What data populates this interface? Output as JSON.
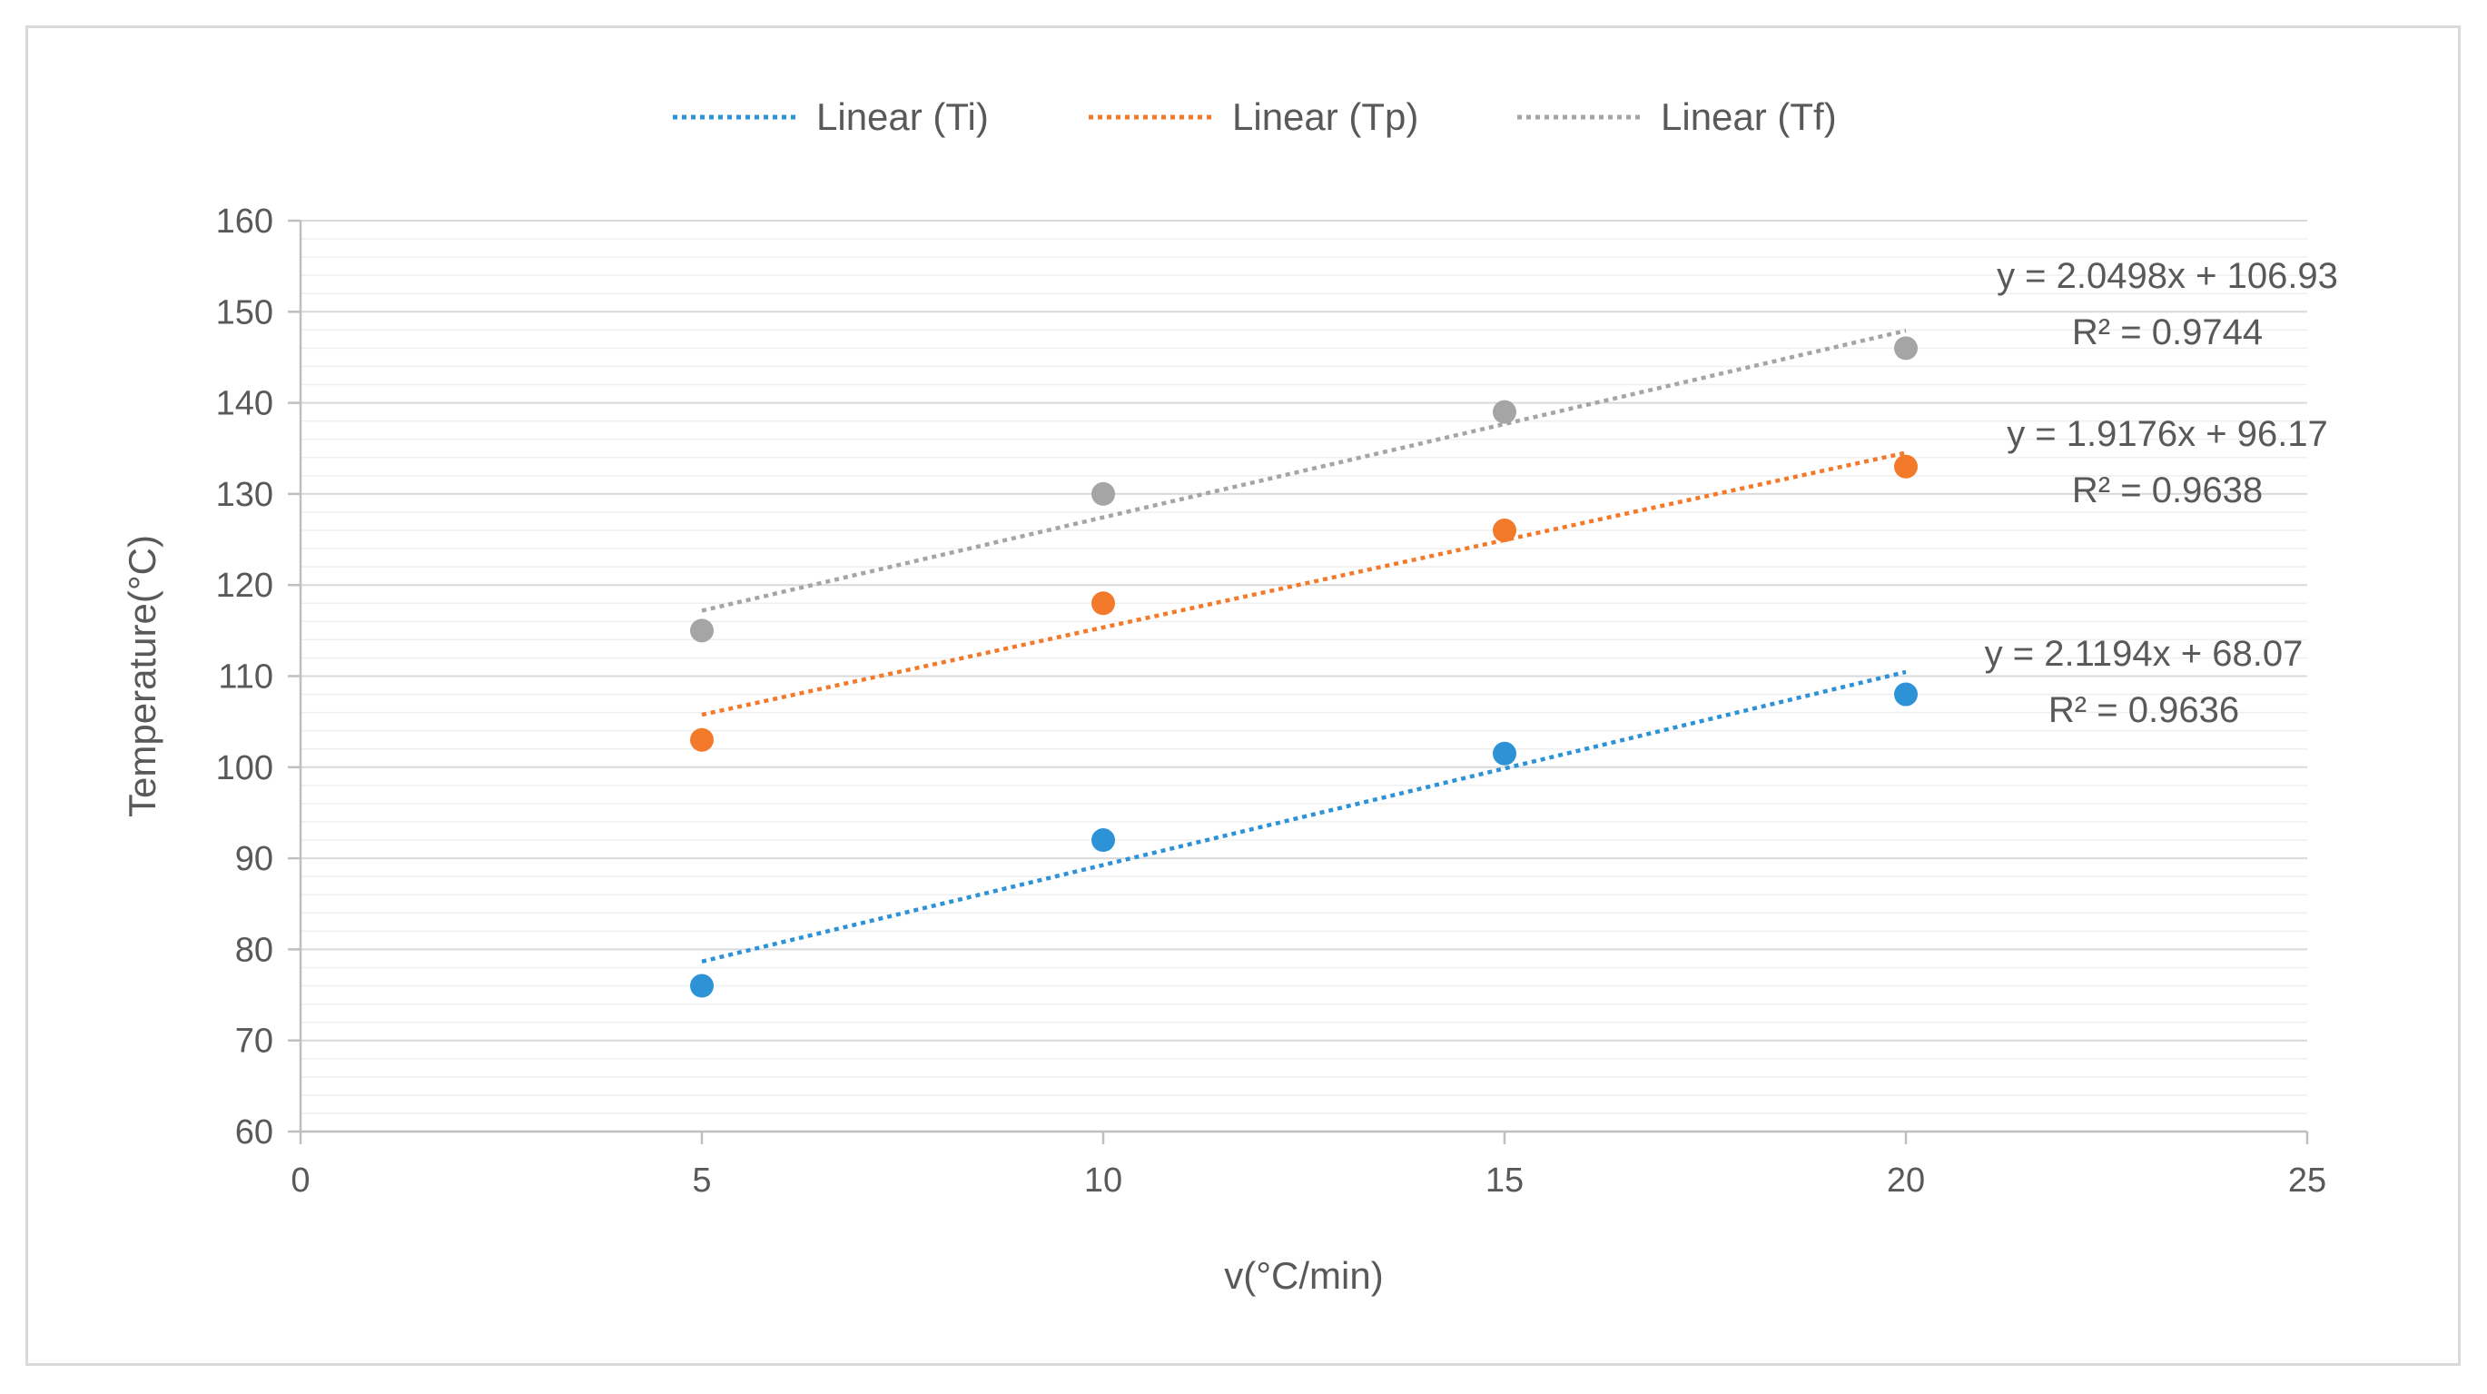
{
  "chart_data": {
    "type": "scatter",
    "xlabel": "v(°C/min)",
    "ylabel": "Temperature(°C)",
    "xlim": [
      0,
      25
    ],
    "ylim": [
      60,
      160
    ],
    "x_ticks": [
      0,
      5,
      10,
      15,
      20,
      25
    ],
    "y_ticks": [
      60,
      70,
      80,
      90,
      100,
      110,
      120,
      130,
      140,
      150,
      160
    ],
    "grid": true,
    "legend_position": "top",
    "series": [
      {
        "key": "Ti",
        "color": "#2e93d6",
        "x": [
          5,
          10,
          15,
          20
        ],
        "y": [
          76,
          92,
          101.5,
          108
        ],
        "trendline": {
          "legend_label": "Linear (Ti)",
          "slope": 2.1194,
          "intercept": 68.07,
          "equation": "y = 2.1194x + 68.07",
          "r2": "R² = 0.9636"
        }
      },
      {
        "key": "Tp",
        "color": "#f47a2b",
        "x": [
          5,
          10,
          15,
          20
        ],
        "y": [
          103,
          118,
          126,
          133
        ],
        "trendline": {
          "legend_label": "Linear (Tp)",
          "slope": 1.9176,
          "intercept": 96.17,
          "equation": "y = 1.9176x + 96.17",
          "r2": "R² = 0.9638"
        }
      },
      {
        "key": "Tf",
        "color": "#a5a5a5",
        "x": [
          5,
          10,
          15,
          20
        ],
        "y": [
          115,
          130,
          139,
          146
        ],
        "trendline": {
          "legend_label": "Linear (Tf)",
          "slope": 2.0498,
          "intercept": 106.93,
          "equation": "y = 2.0498x + 106.93",
          "r2": "R² = 0.9744"
        }
      }
    ]
  }
}
